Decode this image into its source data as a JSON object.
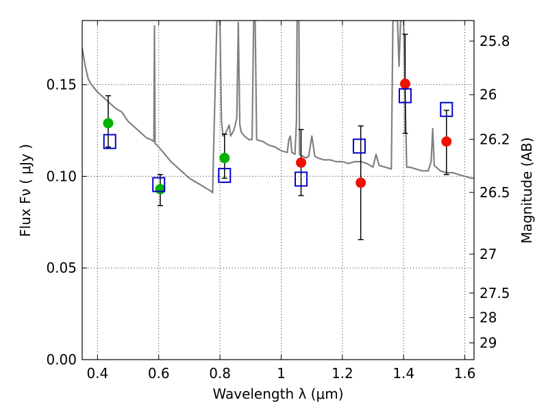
{
  "chart_data": {
    "type": "scatter",
    "xlabel": "Wavelength  λ (μm)",
    "ylabel": "Flux  Fν  ( μJy )",
    "y2label": "Magnitude (AB)",
    "xlim": [
      0.35,
      1.63
    ],
    "ylim": [
      0.0,
      0.185
    ],
    "grid": true,
    "x_ticks": [
      0.4,
      0.6,
      0.8,
      1.0,
      1.2,
      1.4,
      1.6
    ],
    "x_tick_labels": [
      "0.4",
      "0.6",
      "0.8",
      "1",
      "1.2",
      "1.4",
      "1.6"
    ],
    "y_ticks": [
      0.0,
      0.05,
      0.1,
      0.15
    ],
    "y_tick_labels": [
      "0.00",
      "0.05",
      "0.10",
      "0.15"
    ],
    "y2_ticks": [
      25.8,
      26,
      26.2,
      26.5,
      27,
      27.5,
      28,
      29
    ],
    "y2_tick_labels": [
      "25.8",
      "26",
      "26.2",
      "26.5",
      "27",
      "27.5",
      "28",
      "29"
    ],
    "colors": {
      "model": "#808080",
      "observed_green": "#00b300",
      "observed_red": "#ee1100",
      "model_square": "#0000cc",
      "errorbar": "#000000"
    },
    "series": [
      {
        "kind": "line",
        "points": [
          [
            0.35,
            0.17
          ],
          [
            0.36,
            0.16
          ],
          [
            0.37,
            0.153
          ],
          [
            0.38,
            0.15
          ],
          [
            0.39,
            0.148
          ],
          [
            0.4,
            0.146
          ],
          [
            0.42,
            0.143
          ],
          [
            0.44,
            0.14
          ],
          [
            0.46,
            0.137
          ],
          [
            0.48,
            0.135
          ],
          [
            0.5,
            0.13
          ],
          [
            0.52,
            0.127
          ],
          [
            0.54,
            0.124
          ],
          [
            0.56,
            0.121
          ],
          [
            0.575,
            0.12
          ],
          [
            0.584,
            0.119
          ],
          [
            0.586,
            0.182
          ],
          [
            0.588,
            0.118
          ],
          [
            0.6,
            0.116
          ],
          [
            0.62,
            0.112
          ],
          [
            0.64,
            0.108
          ],
          [
            0.66,
            0.105
          ],
          [
            0.68,
            0.102
          ],
          [
            0.7,
            0.099
          ],
          [
            0.72,
            0.097
          ],
          [
            0.74,
            0.095
          ],
          [
            0.75,
            0.094
          ],
          [
            0.76,
            0.093
          ],
          [
            0.77,
            0.092
          ],
          [
            0.776,
            0.091
          ],
          [
            0.78,
            0.12
          ],
          [
            0.79,
            0.185
          ],
          [
            0.8,
            0.185
          ],
          [
            0.805,
            0.13
          ],
          [
            0.81,
            0.122
          ],
          [
            0.82,
            0.124
          ],
          [
            0.83,
            0.128
          ],
          [
            0.835,
            0.122
          ],
          [
            0.845,
            0.125
          ],
          [
            0.85,
            0.128
          ],
          [
            0.855,
            0.132
          ],
          [
            0.86,
            0.184
          ],
          [
            0.865,
            0.128
          ],
          [
            0.87,
            0.124
          ],
          [
            0.88,
            0.122
          ],
          [
            0.895,
            0.12
          ],
          [
            0.905,
            0.12
          ],
          [
            0.91,
            0.185
          ],
          [
            0.915,
            0.185
          ],
          [
            0.92,
            0.12
          ],
          [
            0.94,
            0.119
          ],
          [
            0.96,
            0.117
          ],
          [
            0.98,
            0.116
          ],
          [
            1.0,
            0.114
          ],
          [
            1.02,
            0.113
          ],
          [
            1.025,
            0.12
          ],
          [
            1.03,
            0.122
          ],
          [
            1.035,
            0.113
          ],
          [
            1.045,
            0.112
          ],
          [
            1.05,
            0.13
          ],
          [
            1.052,
            0.185
          ],
          [
            1.058,
            0.185
          ],
          [
            1.06,
            0.112
          ],
          [
            1.07,
            0.111
          ],
          [
            1.08,
            0.11
          ],
          [
            1.09,
            0.111
          ],
          [
            1.1,
            0.122
          ],
          [
            1.11,
            0.111
          ],
          [
            1.12,
            0.11
          ],
          [
            1.14,
            0.109
          ],
          [
            1.16,
            0.109
          ],
          [
            1.18,
            0.108
          ],
          [
            1.2,
            0.108
          ],
          [
            1.22,
            0.107
          ],
          [
            1.24,
            0.108
          ],
          [
            1.26,
            0.108
          ],
          [
            1.28,
            0.107
          ],
          [
            1.3,
            0.105
          ],
          [
            1.31,
            0.112
          ],
          [
            1.32,
            0.106
          ],
          [
            1.34,
            0.105
          ],
          [
            1.36,
            0.104
          ],
          [
            1.365,
            0.185
          ],
          [
            1.38,
            0.185
          ],
          [
            1.385,
            0.16
          ],
          [
            1.39,
            0.185
          ],
          [
            1.4,
            0.185
          ],
          [
            1.41,
            0.105
          ],
          [
            1.42,
            0.105
          ],
          [
            1.44,
            0.104
          ],
          [
            1.46,
            0.103
          ],
          [
            1.48,
            0.103
          ],
          [
            1.49,
            0.108
          ],
          [
            1.495,
            0.126
          ],
          [
            1.5,
            0.106
          ],
          [
            1.52,
            0.103
          ],
          [
            1.54,
            0.102
          ],
          [
            1.56,
            0.102
          ],
          [
            1.58,
            0.101
          ],
          [
            1.6,
            0.1
          ],
          [
            1.62,
            0.099
          ],
          [
            1.63,
            0.099
          ]
        ]
      },
      {
        "kind": "points",
        "marker": "circle",
        "color": "green",
        "points": [
          {
            "x": 0.435,
            "y": 0.129,
            "err_lo": 0.013,
            "err_hi": 0.015
          },
          {
            "x": 0.605,
            "y": 0.093,
            "err_lo": 0.009,
            "err_hi": 0.008
          },
          {
            "x": 0.815,
            "y": 0.11,
            "err_lo": 0.011,
            "err_hi": 0.013
          }
        ]
      },
      {
        "kind": "points",
        "marker": "circle",
        "color": "red",
        "points": [
          {
            "x": 1.065,
            "y": 0.1075,
            "err_lo": 0.018,
            "err_hi": 0.018
          },
          {
            "x": 1.26,
            "y": 0.0965,
            "err_lo": 0.031,
            "err_hi": 0.031
          },
          {
            "x": 1.405,
            "y": 0.1505,
            "err_lo": 0.027,
            "err_hi": 0.027
          },
          {
            "x": 1.54,
            "y": 0.119,
            "err_lo": 0.018,
            "err_hi": 0.017
          }
        ]
      },
      {
        "kind": "points",
        "marker": "open-square",
        "color": "blue",
        "points": [
          {
            "x": 0.44,
            "y": 0.119
          },
          {
            "x": 0.6,
            "y": 0.0955
          },
          {
            "x": 0.815,
            "y": 0.1005
          },
          {
            "x": 1.065,
            "y": 0.0985
          },
          {
            "x": 1.255,
            "y": 0.1165
          },
          {
            "x": 1.405,
            "y": 0.144
          },
          {
            "x": 1.54,
            "y": 0.1365
          }
        ]
      }
    ]
  }
}
